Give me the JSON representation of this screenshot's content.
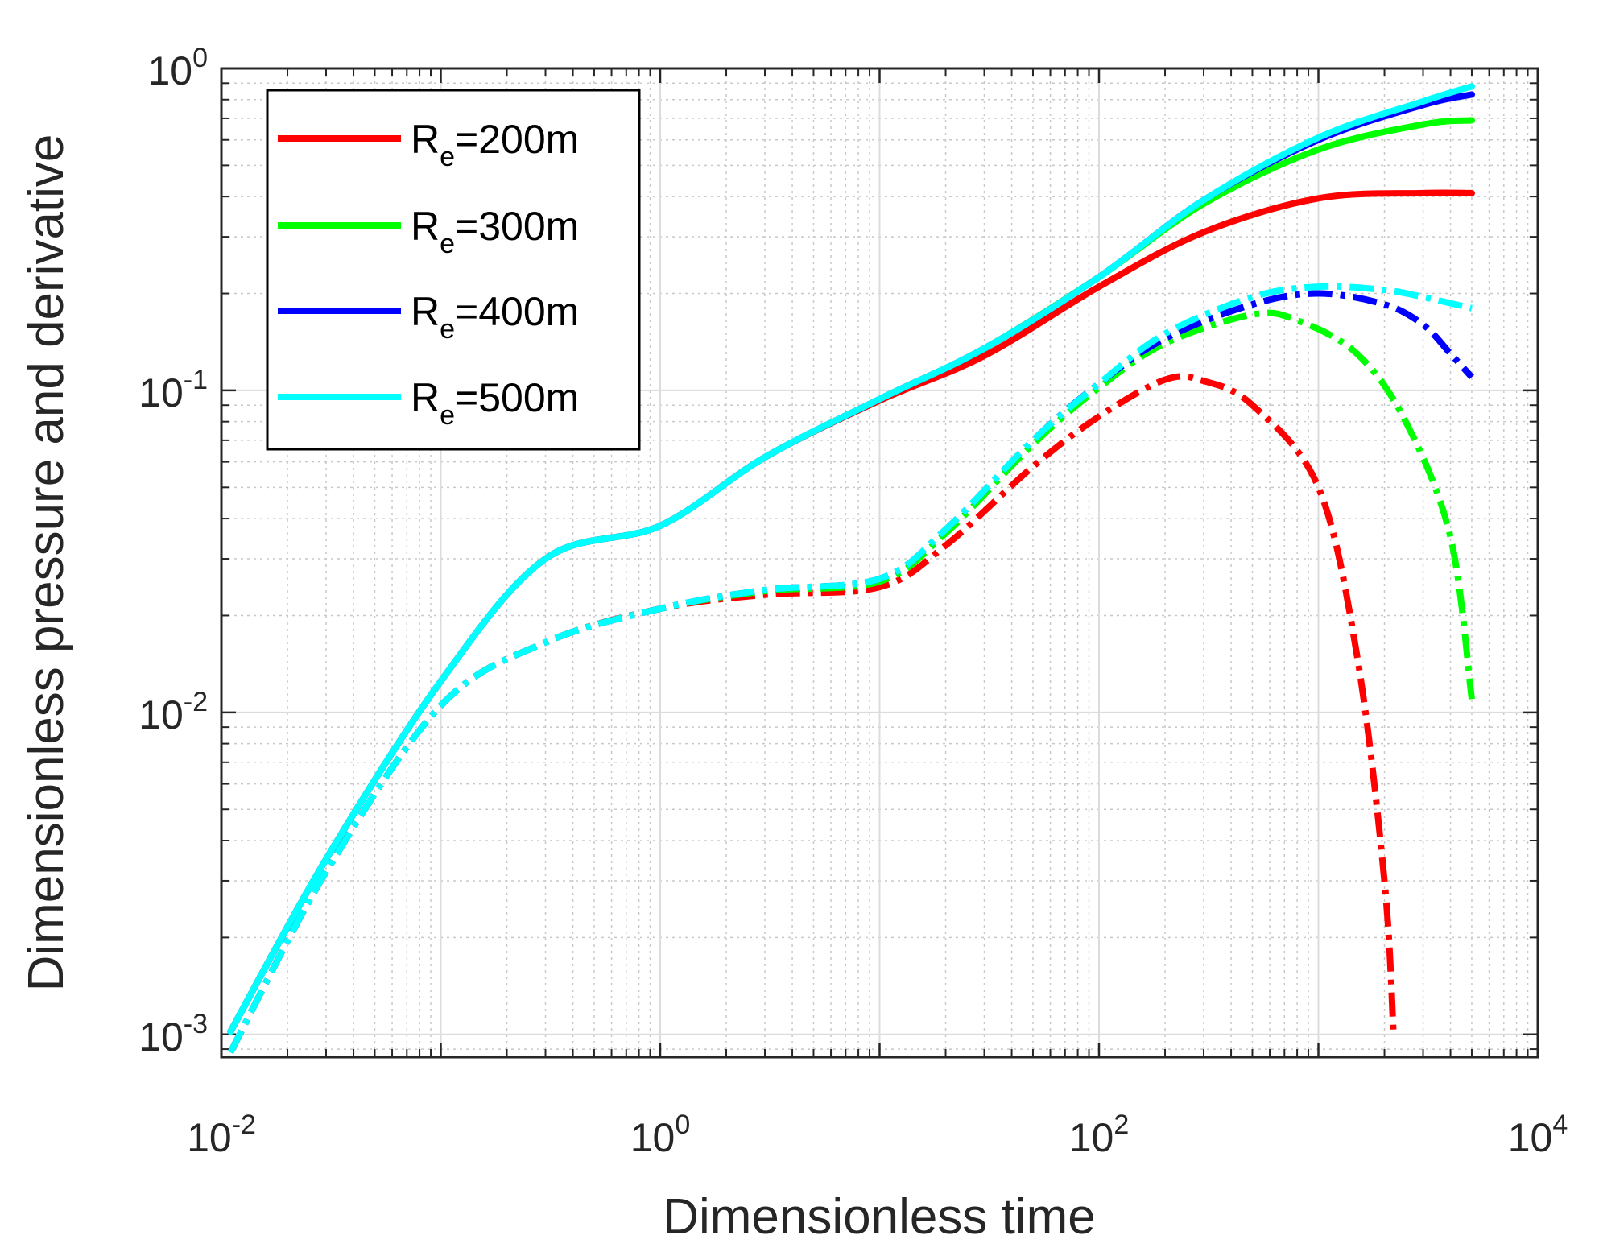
{
  "chart_data": {
    "type": "line",
    "xscale": "log",
    "yscale": "log",
    "xlim": [
      0.01,
      10000
    ],
    "ylim": [
      0.00085,
      1
    ],
    "xlabel": "Dimensionless time",
    "ylabel": "Dimensionless pressure and derivative",
    "grid": true,
    "legend_position": "top-left",
    "x_ticks": [
      {
        "value": 0.01,
        "base": "10",
        "exp": "-2"
      },
      {
        "value": 1,
        "base": "10",
        "exp": "0"
      },
      {
        "value": 100,
        "base": "10",
        "exp": "2"
      },
      {
        "value": 10000,
        "base": "10",
        "exp": "4"
      }
    ],
    "y_ticks": [
      {
        "value": 0.001,
        "base": "10",
        "exp": "-3"
      },
      {
        "value": 0.01,
        "base": "10",
        "exp": "-2"
      },
      {
        "value": 0.1,
        "base": "10",
        "exp": "-1"
      },
      {
        "value": 1,
        "base": "10",
        "exp": "0"
      }
    ],
    "series": [
      {
        "name": "Re=200m",
        "label_main": "R",
        "label_sub": "e",
        "label_rest": "=200m",
        "color": "#ff0000",
        "pressure": [
          [
            0.011,
            0.00102
          ],
          [
            0.03,
            0.0035
          ],
          [
            0.1,
            0.0125
          ],
          [
            0.3,
            0.03
          ],
          [
            1,
            0.038
          ],
          [
            3,
            0.062
          ],
          [
            10,
            0.093
          ],
          [
            30,
            0.128
          ],
          [
            100,
            0.21
          ],
          [
            300,
            0.31
          ],
          [
            1000,
            0.395
          ],
          [
            3000,
            0.41
          ],
          [
            5000,
            0.41
          ]
        ],
        "derivative": [
          [
            0.011,
            0.00088
          ],
          [
            0.03,
            0.0032
          ],
          [
            0.1,
            0.0105
          ],
          [
            0.3,
            0.0165
          ],
          [
            1,
            0.021
          ],
          [
            3,
            0.0232
          ],
          [
            10,
            0.0245
          ],
          [
            20,
            0.033
          ],
          [
            50,
            0.058
          ],
          [
            100,
            0.083
          ],
          [
            200,
            0.108
          ],
          [
            300,
            0.107
          ],
          [
            500,
            0.09
          ],
          [
            1000,
            0.05
          ],
          [
            1500,
            0.015
          ],
          [
            2000,
            0.003
          ],
          [
            2200,
            0.001
          ]
        ]
      },
      {
        "name": "Re=300m",
        "label_main": "R",
        "label_sub": "e",
        "label_rest": "=300m",
        "color": "#00ff00",
        "pressure": [
          [
            0.011,
            0.00102
          ],
          [
            0.03,
            0.0035
          ],
          [
            0.1,
            0.0125
          ],
          [
            0.3,
            0.03
          ],
          [
            1,
            0.038
          ],
          [
            3,
            0.062
          ],
          [
            10,
            0.094
          ],
          [
            30,
            0.135
          ],
          [
            100,
            0.225
          ],
          [
            300,
            0.38
          ],
          [
            1000,
            0.56
          ],
          [
            3000,
            0.67
          ],
          [
            5000,
            0.69
          ]
        ],
        "derivative": [
          [
            0.011,
            0.00088
          ],
          [
            0.03,
            0.0032
          ],
          [
            0.1,
            0.0105
          ],
          [
            0.3,
            0.0165
          ],
          [
            1,
            0.021
          ],
          [
            3,
            0.0238
          ],
          [
            10,
            0.0255
          ],
          [
            20,
            0.036
          ],
          [
            50,
            0.068
          ],
          [
            100,
            0.102
          ],
          [
            200,
            0.14
          ],
          [
            500,
            0.172
          ],
          [
            800,
            0.165
          ],
          [
            1500,
            0.13
          ],
          [
            2500,
            0.08
          ],
          [
            4000,
            0.035
          ],
          [
            5000,
            0.011
          ]
        ]
      },
      {
        "name": "Re=400m",
        "label_main": "R",
        "label_sub": "e",
        "label_rest": "=400m",
        "color": "#0000ff",
        "pressure": [
          [
            0.011,
            0.00102
          ],
          [
            0.03,
            0.0035
          ],
          [
            0.1,
            0.0125
          ],
          [
            0.3,
            0.03
          ],
          [
            1,
            0.038
          ],
          [
            3,
            0.062
          ],
          [
            10,
            0.094
          ],
          [
            30,
            0.135
          ],
          [
            100,
            0.225
          ],
          [
            300,
            0.39
          ],
          [
            1000,
            0.6
          ],
          [
            3000,
            0.77
          ],
          [
            5000,
            0.83
          ]
        ],
        "derivative": [
          [
            0.011,
            0.00088
          ],
          [
            0.03,
            0.0032
          ],
          [
            0.1,
            0.0105
          ],
          [
            0.3,
            0.0165
          ],
          [
            1,
            0.021
          ],
          [
            3,
            0.024
          ],
          [
            10,
            0.026
          ],
          [
            20,
            0.037
          ],
          [
            50,
            0.07
          ],
          [
            100,
            0.105
          ],
          [
            200,
            0.145
          ],
          [
            500,
            0.185
          ],
          [
            1000,
            0.2
          ],
          [
            2000,
            0.185
          ],
          [
            3000,
            0.16
          ],
          [
            4000,
            0.13
          ],
          [
            5000,
            0.11
          ]
        ]
      },
      {
        "name": "Re=500m",
        "label_main": "R",
        "label_sub": "e",
        "label_rest": "=500m",
        "color": "#00ffff",
        "pressure": [
          [
            0.011,
            0.00102
          ],
          [
            0.03,
            0.0035
          ],
          [
            0.1,
            0.0125
          ],
          [
            0.3,
            0.03
          ],
          [
            1,
            0.038
          ],
          [
            3,
            0.062
          ],
          [
            10,
            0.094
          ],
          [
            30,
            0.135
          ],
          [
            100,
            0.225
          ],
          [
            300,
            0.39
          ],
          [
            1000,
            0.61
          ],
          [
            3000,
            0.79
          ],
          [
            5000,
            0.88
          ]
        ],
        "derivative": [
          [
            0.011,
            0.00088
          ],
          [
            0.03,
            0.0032
          ],
          [
            0.1,
            0.0105
          ],
          [
            0.3,
            0.0165
          ],
          [
            1,
            0.021
          ],
          [
            3,
            0.024
          ],
          [
            10,
            0.026
          ],
          [
            20,
            0.037
          ],
          [
            50,
            0.07
          ],
          [
            100,
            0.105
          ],
          [
            200,
            0.15
          ],
          [
            500,
            0.195
          ],
          [
            1000,
            0.21
          ],
          [
            2000,
            0.205
          ],
          [
            3000,
            0.195
          ],
          [
            5000,
            0.18
          ]
        ]
      }
    ]
  }
}
